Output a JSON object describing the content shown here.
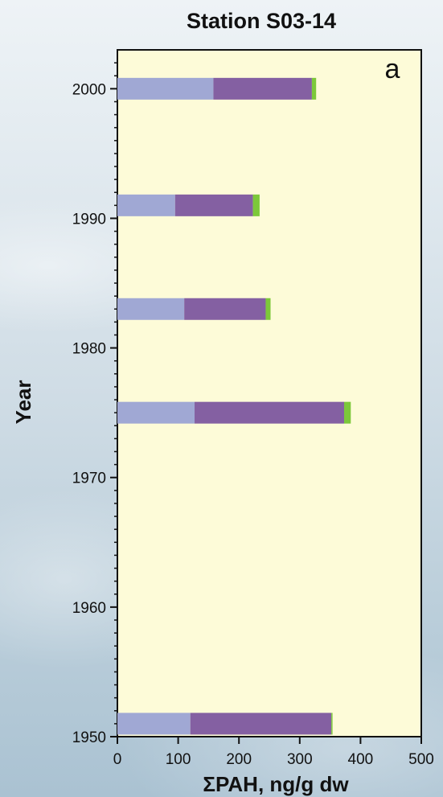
{
  "chart_data": {
    "type": "bar",
    "orientation": "horizontal",
    "stacked": true,
    "title": "Station S03-14",
    "panel_label": "a",
    "xlabel": "ΣPAH, ng/g dw",
    "ylabel": "Year",
    "xlim": [
      0,
      500
    ],
    "ylim": [
      1950,
      2003
    ],
    "x_ticks": [
      0,
      100,
      200,
      300,
      400,
      500
    ],
    "x_tick_labels": [
      "0",
      "100",
      "200",
      "300",
      "400",
      "500"
    ],
    "y_ticks": [
      1950,
      1960,
      1970,
      1980,
      1990,
      2000
    ],
    "y_tick_labels": [
      "1950",
      "1960",
      "1970",
      "1980",
      "1990",
      "2000"
    ],
    "grid": false,
    "categories": [
      2000,
      1991,
      1983,
      1975,
      1951
    ],
    "series": [
      {
        "color": "#a0a8d4",
        "values": [
          158,
          95,
          110,
          127,
          120
        ]
      },
      {
        "color": "#8460a2",
        "values": [
          162,
          128,
          134,
          246,
          232
        ]
      },
      {
        "color": "#7cc83a",
        "values": [
          7,
          11,
          8,
          11,
          2
        ]
      }
    ],
    "colors": {
      "plot_background": "#fdfbd8",
      "axis": "#111111"
    }
  }
}
